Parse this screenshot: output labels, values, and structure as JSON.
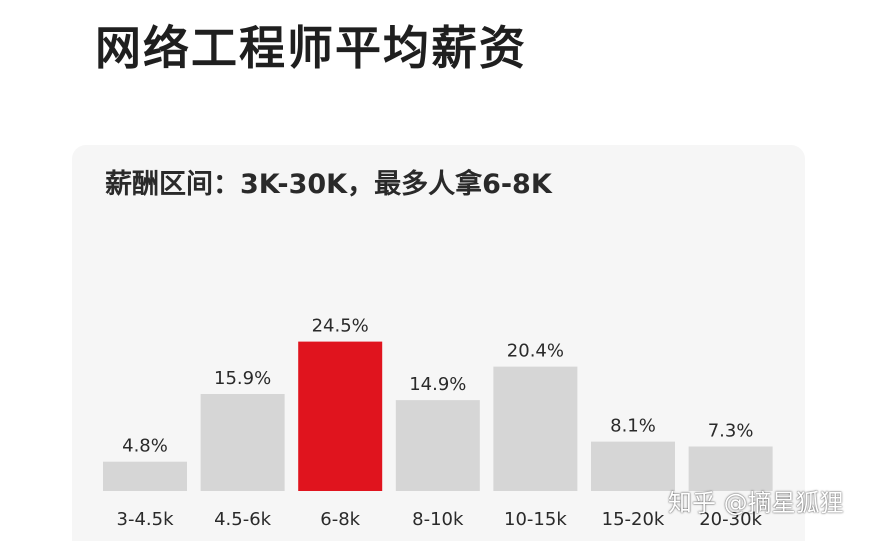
{
  "title": "网络工程师平均薪资",
  "colors": {
    "highlight": "#e0141e",
    "bar": "#d6d6d6",
    "text": "#2a2a2a",
    "card": "#f6f6f6"
  },
  "watermark": "知乎 @摘星狐狸",
  "chart_data": {
    "type": "bar",
    "title": "薪酬区间：3K-30K，最多人拿6-8K",
    "xlabel": "",
    "ylabel": "",
    "grid": false,
    "legend": "none",
    "categories": [
      "3-4.5k",
      "4.5-6k",
      "6-8k",
      "8-10k",
      "10-15k",
      "15-20k",
      "20-30k"
    ],
    "values": [
      4.8,
      15.9,
      24.5,
      14.9,
      20.4,
      8.1,
      7.3
    ],
    "data_labels": [
      "4.8%",
      "15.9%",
      "24.5%",
      "14.9%",
      "20.4%",
      "8.1%",
      "7.3%"
    ],
    "unit": "%",
    "highlight_index": 2
  }
}
